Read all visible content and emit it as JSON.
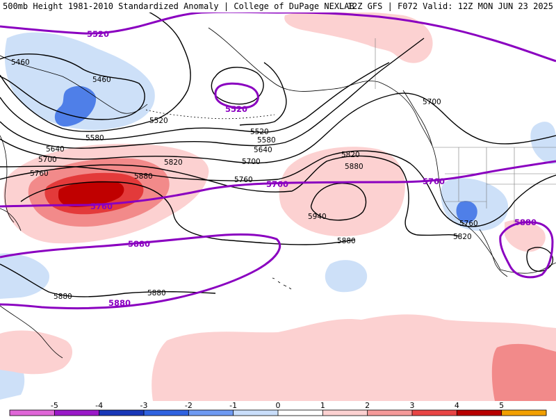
{
  "header": {
    "left": "500mb Height 1981-2010 Standardized Anomaly | College of DuPage NEXLAB",
    "right": "12Z GFS | F072 Valid: 12Z MON JUN 23 2025"
  },
  "contour_labels": [
    {
      "id": "lbl-5460-a",
      "text": "5460"
    },
    {
      "id": "lbl-5460-b",
      "text": "5460"
    },
    {
      "id": "lbl-5520-a",
      "text": "5520"
    },
    {
      "id": "lbl-5520-b",
      "text": "5520"
    },
    {
      "id": "lbl-5580-a",
      "text": "5580"
    },
    {
      "id": "lbl-5580-b",
      "text": "5580"
    },
    {
      "id": "lbl-5640-a",
      "text": "5640"
    },
    {
      "id": "lbl-5640-b",
      "text": "5640"
    },
    {
      "id": "lbl-5700-a",
      "text": "5700"
    },
    {
      "id": "lbl-5700-b",
      "text": "5700"
    },
    {
      "id": "lbl-5700-c",
      "text": "5700"
    },
    {
      "id": "lbl-5760-a",
      "text": "5760"
    },
    {
      "id": "lbl-5760-b",
      "text": "5760"
    },
    {
      "id": "lbl-5760-c",
      "text": "5760"
    },
    {
      "id": "lbl-5820-a",
      "text": "5820"
    },
    {
      "id": "lbl-5820-b",
      "text": "5820"
    },
    {
      "id": "lbl-5820-c",
      "text": "5820"
    },
    {
      "id": "lbl-5880-a",
      "text": "5880"
    },
    {
      "id": "lbl-5880-b",
      "text": "5880"
    },
    {
      "id": "lbl-5880-c",
      "text": "5880"
    },
    {
      "id": "lbl-5880-d",
      "text": "5880"
    },
    {
      "id": "lbl-5940",
      "text": "5940"
    }
  ],
  "climo_labels": [
    {
      "id": "p-5520-a",
      "text": "5520"
    },
    {
      "id": "p-5520-b",
      "text": "5520"
    },
    {
      "id": "p-5760-a",
      "text": "5760"
    },
    {
      "id": "p-5760-b",
      "text": "5760"
    },
    {
      "id": "p-5760-c",
      "text": "5760"
    },
    {
      "id": "p-5880-a",
      "text": "5880"
    },
    {
      "id": "p-5880-b",
      "text": "5880"
    },
    {
      "id": "p-5880-c",
      "text": "5880"
    }
  ],
  "colorbar": {
    "ticks": [
      "-5",
      "-4",
      "-3",
      "-2",
      "-1",
      "0",
      "1",
      "2",
      "3",
      "4",
      "5"
    ],
    "colors": [
      "#e066d8",
      "#9a19c8",
      "#1837b8",
      "#2f62e0",
      "#6e9af2",
      "#c9defa",
      "#ffffff",
      "#fcd1d1",
      "#f59a9a",
      "#e84545",
      "#b80000",
      "#f2a000"
    ]
  },
  "colors": {
    "contour": "#000000",
    "climo": "#8a00c0",
    "neg1": "#cde0f8",
    "neg2": "#4f7fe8",
    "pos1": "#fcd1d1",
    "pos2": "#f28a8a",
    "pos3": "#e33a3a",
    "pos4": "#c00000",
    "land": "#000000"
  }
}
